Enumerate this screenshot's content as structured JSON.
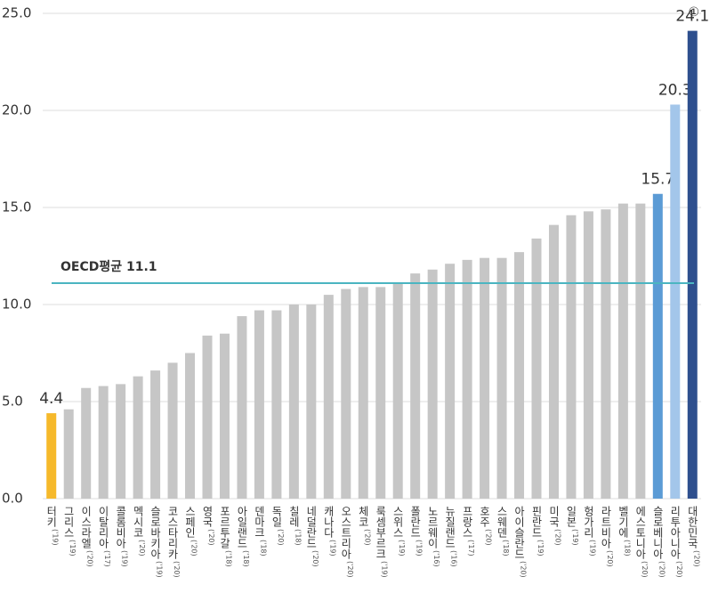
{
  "chart_data": {
    "type": "bar",
    "categories": [
      "터키",
      "그리스",
      "이스라엘",
      "이탈리아",
      "콜롬비아",
      "멕시코",
      "슬로바키아",
      "코스타리카",
      "스페인",
      "영국",
      "포르투갈",
      "아일랜드",
      "덴마크",
      "독일",
      "칠레",
      "네덜란드",
      "캐나다",
      "오스트리아",
      "체코",
      "룩셈부르크",
      "스위스",
      "폴란드",
      "노르웨이",
      "뉴질랜드",
      "프랑스",
      "호주",
      "스웨덴",
      "아이슬란드",
      "핀란드",
      "미국",
      "일본",
      "헝가리",
      "라트비아",
      "벨기에",
      "에스토니아",
      "슬로베니아",
      "리투아니아",
      "대한민국"
    ],
    "years": [
      "('19)",
      "('19)",
      "('20)",
      "('17)",
      "('19)",
      "('20)",
      "('19)",
      "('20)",
      "('20)",
      "('20)",
      "('18)",
      "('18)",
      "('18)",
      "('20)",
      "('18)",
      "('20)",
      "('19)",
      "('20)",
      "('20)",
      "('19)",
      "('19)",
      "('19)",
      "('16)",
      "('16)",
      "('17)",
      "('20)",
      "('18)",
      "('20)",
      "('19)",
      "('20)",
      "('19)",
      "('19)",
      "('20)",
      "('18)",
      "('20)",
      "('20)",
      "('20)",
      "('20)"
    ],
    "values": [
      4.4,
      4.6,
      5.7,
      5.8,
      5.9,
      6.3,
      6.6,
      7.0,
      7.5,
      8.4,
      8.5,
      9.4,
      9.7,
      9.7,
      10.0,
      10.0,
      10.5,
      10.8,
      10.9,
      10.9,
      11.1,
      11.6,
      11.8,
      12.1,
      12.3,
      12.4,
      12.4,
      12.7,
      13.4,
      14.1,
      14.6,
      14.8,
      14.9,
      15.2,
      15.2,
      15.7,
      20.3,
      24.1
    ],
    "value_labels": [
      "4.4",
      null,
      null,
      null,
      null,
      null,
      null,
      null,
      null,
      null,
      null,
      null,
      null,
      null,
      null,
      null,
      null,
      null,
      null,
      null,
      null,
      null,
      null,
      null,
      null,
      null,
      null,
      null,
      null,
      null,
      null,
      null,
      null,
      null,
      null,
      "15.7",
      "20.3",
      "24.1"
    ],
    "colors": [
      "#f6b92b",
      "#c6c6c6",
      "#c6c6c6",
      "#c6c6c6",
      "#c6c6c6",
      "#c6c6c6",
      "#c6c6c6",
      "#c6c6c6",
      "#c6c6c6",
      "#c6c6c6",
      "#c6c6c6",
      "#c6c6c6",
      "#c6c6c6",
      "#c6c6c6",
      "#c6c6c6",
      "#c6c6c6",
      "#c6c6c6",
      "#c6c6c6",
      "#c6c6c6",
      "#c6c6c6",
      "#c6c6c6",
      "#c6c6c6",
      "#c6c6c6",
      "#c6c6c6",
      "#c6c6c6",
      "#c6c6c6",
      "#c6c6c6",
      "#c6c6c6",
      "#c6c6c6",
      "#c6c6c6",
      "#c6c6c6",
      "#c6c6c6",
      "#c6c6c6",
      "#c6c6c6",
      "#c6c6c6",
      "#5b9bd5",
      "#a3c6ea",
      "#2e4f8e"
    ],
    "ylim": [
      0,
      25
    ],
    "yticks": [
      {
        "value": 0,
        "label": "0.0"
      },
      {
        "value": 5,
        "label": "5.0"
      },
      {
        "value": 10,
        "label": "10.0"
      },
      {
        "value": 15,
        "label": "15.0"
      },
      {
        "value": 20,
        "label": "20.0"
      },
      {
        "value": 25,
        "label": "25.0"
      }
    ],
    "grid": true,
    "reference_line": {
      "label": "OECD평균 11.1",
      "value": 11.1,
      "color": "#4bb5c1"
    },
    "footnote_marker": "①"
  }
}
